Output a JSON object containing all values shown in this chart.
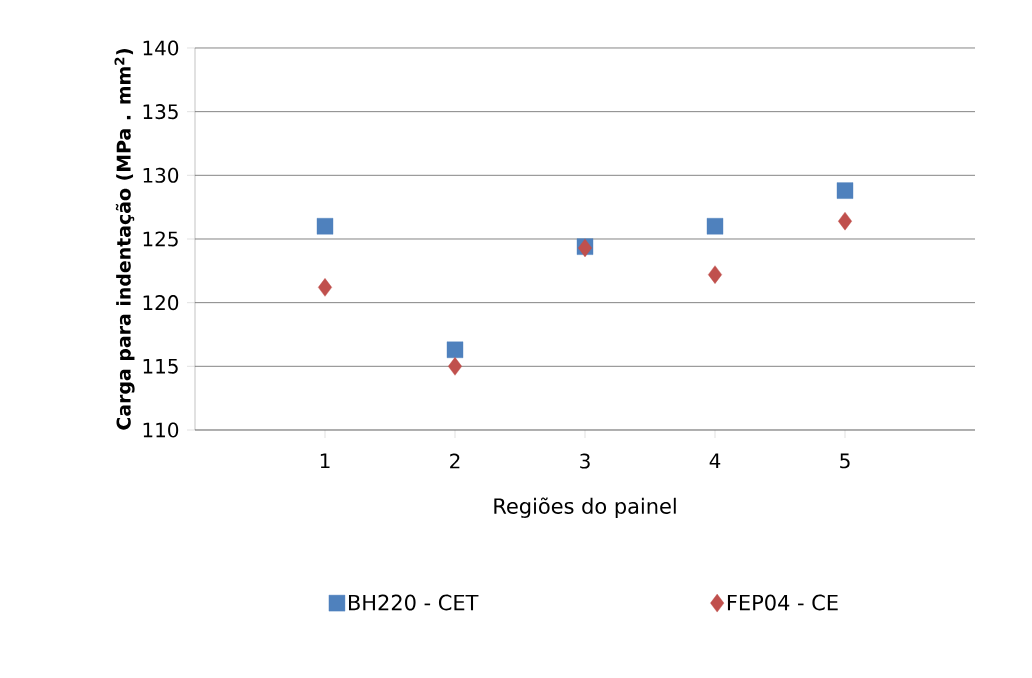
{
  "chart_data": {
    "type": "scatter",
    "xlabel": "Regiões do painel",
    "ylabel": "**Carga para indentação  (MPa . mm$^{2}$)**",
    "x": [
      1,
      2,
      3,
      4,
      5
    ],
    "xlim": [
      0,
      6
    ],
    "xticks": [
      1,
      2,
      3,
      4,
      5
    ],
    "ylim": [
      110,
      140
    ],
    "yticks": [
      110,
      115,
      120,
      125,
      130,
      135,
      140
    ],
    "grid": "y",
    "legend": "bottom",
    "series": [
      {
        "name": "BH220 - CET",
        "color": "#4f81bd",
        "marker": "square",
        "values": [
          126.0,
          116.3,
          124.4,
          126.0,
          128.8
        ]
      },
      {
        "name": "FEP04 - CE",
        "color": "#c0504d",
        "marker": "diamond",
        "values": [
          121.2,
          115.0,
          124.3,
          122.2,
          126.4
        ]
      }
    ]
  }
}
